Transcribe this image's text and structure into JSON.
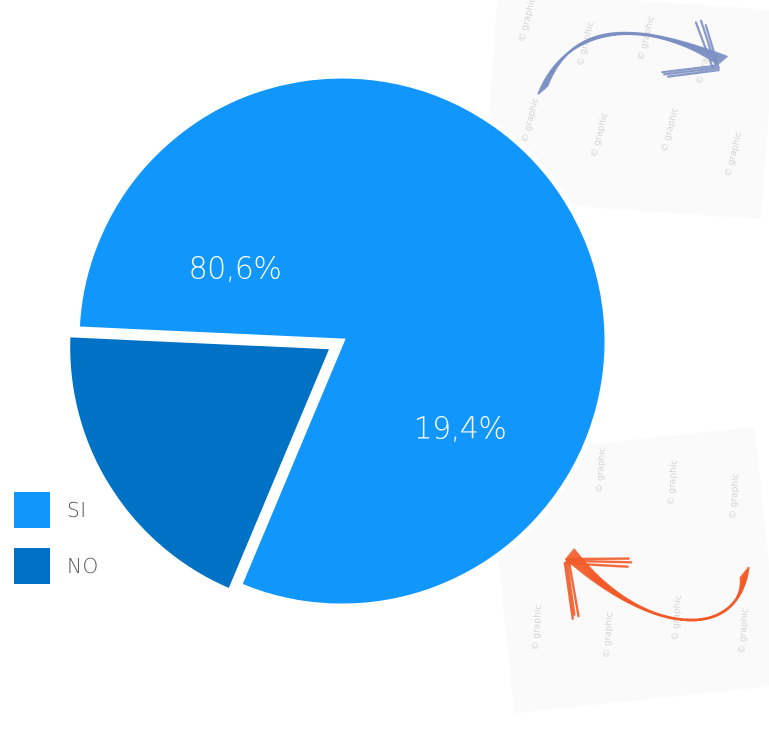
{
  "chart_data": {
    "type": "pie",
    "categories": [
      "SI",
      "NO"
    ],
    "values": [
      80.6,
      19.4
    ],
    "data_labels": [
      "80,6%",
      "19,4%"
    ],
    "colors": [
      "#1196fb",
      "#0072c6"
    ],
    "exploded": "NO",
    "legend_position": "bottom-left",
    "title": ""
  },
  "decorations": {
    "top_arrow_color": "#7b8fc2",
    "bottom_arrow_color": "#f25a28"
  }
}
